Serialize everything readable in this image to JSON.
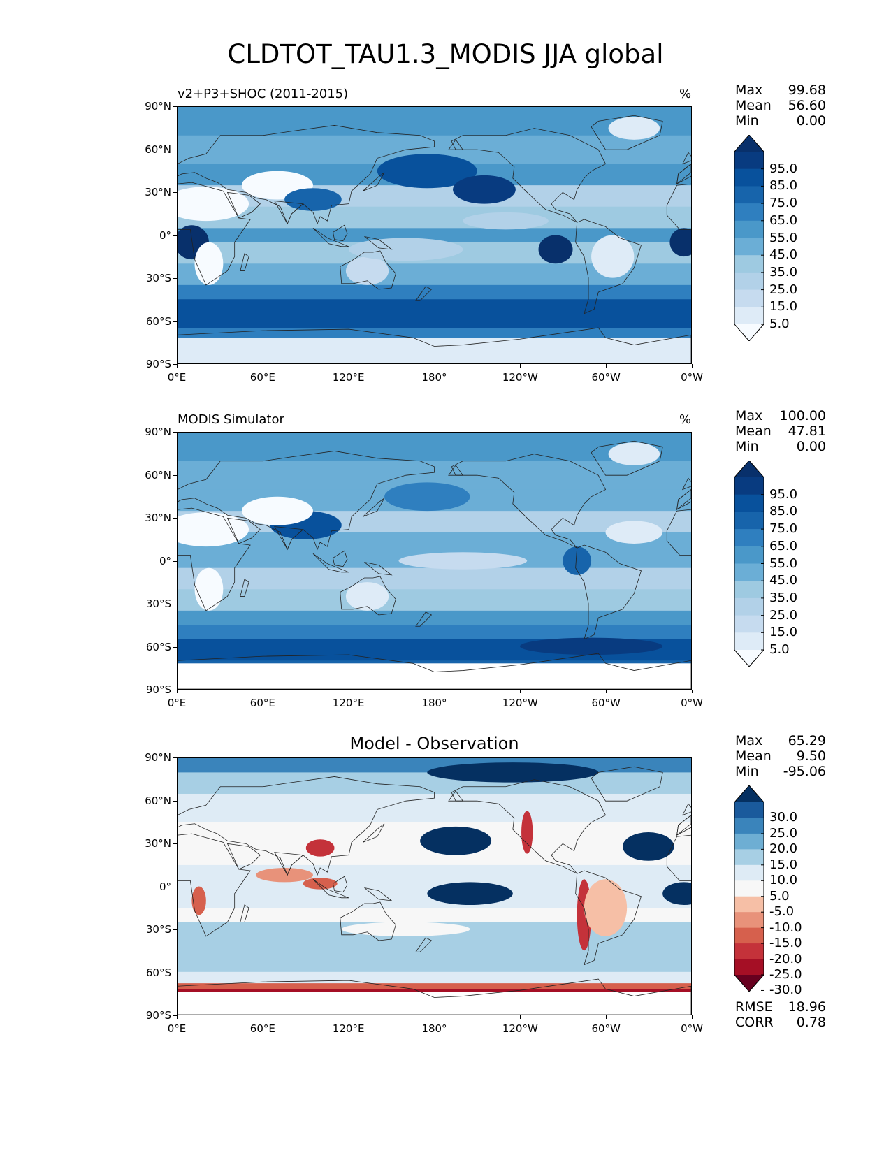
{
  "title": "CLDTOT_TAU1.3_MODIS JJA global",
  "panels": [
    {
      "left_title": "v2+P3+SHOC (2011-2015)",
      "center_title": "",
      "units": "%",
      "stats": [
        [
          "Max",
          "99.68"
        ],
        [
          "Mean",
          "56.60"
        ],
        [
          "Min",
          "0.00"
        ]
      ],
      "colorbar_labels": [
        "95.0",
        "85.0",
        "75.0",
        "65.0",
        "55.0",
        "45.0",
        "35.0",
        "25.0",
        "15.0",
        "5.0"
      ],
      "footer": []
    },
    {
      "left_title": "MODIS Simulator",
      "center_title": "",
      "units": "%",
      "stats": [
        [
          "Max",
          "100.00"
        ],
        [
          "Mean",
          "47.81"
        ],
        [
          "Min",
          "0.00"
        ]
      ],
      "colorbar_labels": [
        "95.0",
        "85.0",
        "75.0",
        "65.0",
        "55.0",
        "45.0",
        "35.0",
        "25.0",
        "15.0",
        "5.0"
      ],
      "footer": []
    },
    {
      "left_title": "",
      "center_title": "Model - Observation",
      "units": "",
      "stats": [
        [
          "Max",
          "65.29"
        ],
        [
          "Mean",
          "9.50"
        ],
        [
          "Min",
          "-95.06"
        ]
      ],
      "colorbar_labels": [
        "30.0",
        "25.0",
        "20.0",
        "15.0",
        "10.0",
        "5.0",
        "-5.0",
        "-10.0",
        "-15.0",
        "-20.0",
        "-25.0",
        "-30.0"
      ],
      "footer": [
        [
          "RMSE",
          "18.96"
        ],
        [
          "CORR",
          "0.78"
        ]
      ]
    }
  ],
  "axes": {
    "lat_labels": [
      "90°N",
      "60°N",
      "30°N",
      "0°",
      "30°S",
      "60°S",
      "90°S"
    ],
    "lon_labels": [
      "0°E",
      "60°E",
      "120°E",
      "180°",
      "120°W",
      "60°W",
      "0°W"
    ]
  },
  "colors": {
    "abs_scale": [
      "#f7fbff",
      "#deebf7",
      "#c6dbef",
      "#b2d1e8",
      "#9ecae1",
      "#6baed6",
      "#4a98c9",
      "#2f7fbf",
      "#1764ab",
      "#08519c",
      "#083b80",
      "#08306b"
    ],
    "diff_scale": [
      "#67001f",
      "#a50f25",
      "#c4323a",
      "#d6604d",
      "#e8927a",
      "#f6bfa6",
      "#f7f7f7",
      "#deebf5",
      "#a7cfe4",
      "#6eaed3",
      "#3a84bb",
      "#1a5a9c",
      "#053061"
    ]
  },
  "chart_data": [
    {
      "type": "heatmap",
      "title": "v2+P3+SHOC (2011-2015)",
      "units": "%",
      "xlim": [
        0,
        360
      ],
      "ylim": [
        -90,
        90
      ],
      "x_ticks": [
        "0°E",
        "60°E",
        "120°E",
        "180°",
        "120°W",
        "60°W",
        "0°W"
      ],
      "y_ticks": [
        "90°N",
        "60°N",
        "30°N",
        "0°",
        "30°S",
        "60°S",
        "90°S"
      ],
      "levels": [
        0,
        5,
        15,
        25,
        35,
        45,
        55,
        65,
        75,
        85,
        95,
        100
      ],
      "stats": {
        "max": 99.68,
        "mean": 56.6,
        "min": 0.0
      },
      "zonal_mean_estimate": {
        "lat": [
          85,
          70,
          55,
          40,
          25,
          10,
          0,
          -10,
          -25,
          -40,
          -55,
          -65,
          -80
        ],
        "value": [
          60,
          65,
          62,
          55,
          40,
          50,
          60,
          45,
          40,
          70,
          90,
          85,
          10
        ]
      }
    },
    {
      "type": "heatmap",
      "title": "MODIS Simulator",
      "units": "%",
      "xlim": [
        0,
        360
      ],
      "ylim": [
        -90,
        90
      ],
      "levels": [
        0,
        5,
        15,
        25,
        35,
        45,
        55,
        65,
        75,
        85,
        95,
        100
      ],
      "stats": {
        "max": 100.0,
        "mean": 47.81,
        "min": 0.0
      },
      "zonal_mean_estimate": {
        "lat": [
          85,
          70,
          55,
          40,
          25,
          10,
          0,
          -10,
          -25,
          -40,
          -55,
          -65,
          -75
        ],
        "value": [
          55,
          60,
          58,
          48,
          38,
          45,
          50,
          40,
          35,
          60,
          75,
          80,
          0
        ]
      }
    },
    {
      "type": "heatmap",
      "title": "Model - Observation",
      "xlim": [
        0,
        360
      ],
      "ylim": [
        -90,
        90
      ],
      "levels": [
        -30,
        -25,
        -20,
        -15,
        -10,
        -5,
        5,
        10,
        15,
        20,
        25,
        30
      ],
      "stats": {
        "max": 65.29,
        "mean": 9.5,
        "min": -95.06,
        "rmse": 18.96,
        "corr": 0.78
      }
    }
  ]
}
